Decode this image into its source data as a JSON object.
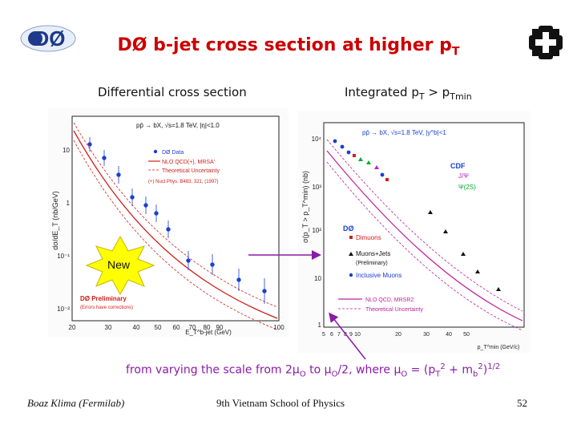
{
  "logos": {
    "left_text": "DØ",
    "right_icon": "fermilab-logo"
  },
  "title": {
    "main": "DØ b-jet cross section at higher p",
    "sub": "T"
  },
  "left_panel": {
    "heading": "Differential cross section",
    "ylabel": "dσ/dE_T (nb/GeV)",
    "xlabel": "E_T^b-jet (GeV)",
    "legend_title": "pp̄ → bX, √s=1.8 TeV, |η|<1.0",
    "legend": [
      "DØ Data",
      "NLO QCD(+), MRSA'",
      "Theoretical Uncertainty",
      "(+) Nucl.Phys. B483, 321, (1997)"
    ],
    "prelim": "DØ Preliminary",
    "prelim_note": "(Errors have corrections)",
    "starburst": "New",
    "x_ticks": [
      "20",
      "30",
      "40",
      "50",
      "60",
      "70",
      "80",
      "90",
      "100"
    ],
    "y_ticks": [
      "10",
      "1",
      "10⁻¹",
      "10⁻²"
    ]
  },
  "right_panel": {
    "heading": "Integrated p",
    "heading_sub1": "T",
    "heading_mid": " > p",
    "heading_sub2": "Tmin",
    "ylabel": "σ(p_T > p_T^min) (nb)",
    "xlabel": "p_T^min (GeV/c)",
    "top_label": "pp̄ → bX, √s=1.8 TeV, |y^b|<1",
    "cdf_label": "CDF",
    "cdf_items": [
      "J/Ψ",
      "Ψ(2S)"
    ],
    "d0_label": "DØ",
    "d0_items": [
      "Dimuons",
      "Muons+Jets",
      "(Preliminary)",
      "Inclusive Muons"
    ],
    "theory": [
      "NLO QCD, MRSR2",
      "Theoretical Uncertainty"
    ],
    "x_ticks": [
      "5",
      "6",
      "7",
      "8",
      "9",
      "10",
      "20",
      "30",
      "40",
      "50"
    ],
    "y_ticks": [
      "10⁴",
      "10³",
      "10²",
      "10",
      "1"
    ]
  },
  "note": {
    "p1": "from varying the scale from 2μ",
    "s1": "O",
    "p2": " to μ",
    "s2": "O",
    "p3": "/2,  where μ",
    "s3": "O",
    "p4": " = (p",
    "s4": "T",
    "sup4": "2",
    "p5": " + m",
    "s5": "b",
    "sup5": "2",
    "p6": ")",
    "sup6": "1/2"
  },
  "footer": {
    "author": "Boaz Klima (Fermilab)",
    "event": "9th Vietnam School of Physics",
    "page": "52"
  },
  "colors": {
    "title": "#cc0000",
    "note": "#8a1aa8",
    "theory": "#d0201a",
    "data": "#1a3fd0",
    "starburst": "#ffff00"
  }
}
